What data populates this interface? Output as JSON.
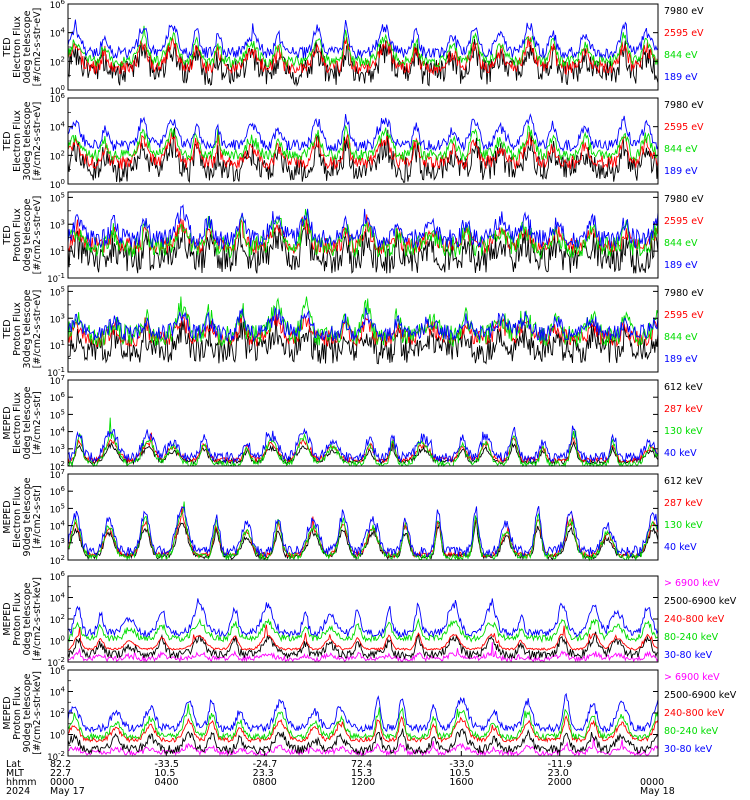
{
  "chart_data": [
    {
      "type": "line",
      "log_y": true,
      "ylabel": [
        "TED",
        "Electron Flux",
        "0deg telescope",
        "[#/cm2-s-str-eV]"
      ],
      "yticks": [
        "10^0",
        "10^2",
        "10^4",
        "10^6"
      ],
      "ylim_exp": [
        0,
        6
      ],
      "series": [
        {
          "label": "7980 eV",
          "color": "#000000",
          "base": 1.2,
          "peak": 3.0,
          "noise": 0.9,
          "seed": 11
        },
        {
          "label": "2595 eV",
          "color": "#ff0000",
          "base": 1.6,
          "peak": 3.4,
          "noise": 0.5,
          "seed": 12
        },
        {
          "label": "844 eV",
          "color": "#00dd00",
          "base": 2.0,
          "peak": 3.9,
          "noise": 0.4,
          "seed": 13
        },
        {
          "label": "189 eV",
          "color": "#0000ff",
          "base": 2.6,
          "peak": 4.6,
          "noise": 0.4,
          "seed": 14
        }
      ],
      "burst_seed": 1
    },
    {
      "type": "line",
      "log_y": true,
      "ylabel": [
        "TED",
        "Electron Flux",
        "30deg telescope",
        "[#/cm2-s-str-eV]"
      ],
      "yticks": [
        "10^0",
        "10^2",
        "10^4",
        "10^6"
      ],
      "ylim_exp": [
        0,
        6
      ],
      "series": [
        {
          "label": "7980 eV",
          "color": "#000000",
          "base": 1.0,
          "peak": 2.8,
          "noise": 0.9,
          "seed": 21
        },
        {
          "label": "2595 eV",
          "color": "#ff0000",
          "base": 1.5,
          "peak": 3.3,
          "noise": 0.5,
          "seed": 22
        },
        {
          "label": "844 eV",
          "color": "#00dd00",
          "base": 2.0,
          "peak": 3.8,
          "noise": 0.4,
          "seed": 23
        },
        {
          "label": "189 eV",
          "color": "#0000ff",
          "base": 2.7,
          "peak": 4.7,
          "noise": 0.4,
          "seed": 24
        }
      ],
      "burst_seed": 1
    },
    {
      "type": "line",
      "log_y": true,
      "ylabel": [
        "TED",
        "Proton Flux",
        "0deg telescope",
        "[#/cm2-s-str-eV]"
      ],
      "yticks": [
        "10^-1",
        "10^1",
        "10^3",
        "10^5"
      ],
      "ylim_exp": [
        -1,
        5.4
      ],
      "series": [
        {
          "label": "7980 eV",
          "color": "#000000",
          "base": 0.4,
          "peak": 2.2,
          "noise": 1.1,
          "seed": 31
        },
        {
          "label": "2595 eV",
          "color": "#ff0000",
          "base": 1.4,
          "peak": 3.0,
          "noise": 0.6,
          "seed": 32
        },
        {
          "label": "844 eV",
          "color": "#00dd00",
          "base": 1.3,
          "peak": 3.4,
          "noise": 0.8,
          "seed": 33
        },
        {
          "label": "189 eV",
          "color": "#0000ff",
          "base": 1.9,
          "peak": 3.9,
          "noise": 0.7,
          "seed": 34
        }
      ],
      "burst_seed": 2
    },
    {
      "type": "line",
      "log_y": true,
      "ylabel": [
        "TED",
        "Proton Flux",
        "30deg telescope",
        "[#/cm2-s-str-eV]"
      ],
      "yticks": [
        "10^-1",
        "10^1",
        "10^3",
        "10^5"
      ],
      "ylim_exp": [
        -1,
        5.4
      ],
      "series": [
        {
          "label": "7980 eV",
          "color": "#000000",
          "base": 0.6,
          "peak": 2.2,
          "noise": 1.0,
          "seed": 41
        },
        {
          "label": "2595 eV",
          "color": "#ff0000",
          "base": 1.5,
          "peak": 3.0,
          "noise": 0.6,
          "seed": 42
        },
        {
          "label": "844 eV",
          "color": "#00dd00",
          "base": 1.7,
          "peak": 3.9,
          "noise": 0.8,
          "seed": 43
        },
        {
          "label": "189 eV",
          "color": "#0000ff",
          "base": 1.9,
          "peak": 3.4,
          "noise": 0.6,
          "seed": 44
        }
      ],
      "burst_seed": 2
    },
    {
      "type": "line",
      "log_y": true,
      "ylabel": [
        "MEPED",
        "Electron Flux",
        "0deg telescope",
        "[#/cm2-s-str]"
      ],
      "yticks": [
        "10^2",
        "10^3",
        "10^4",
        "10^5",
        "10^6",
        "10^7"
      ],
      "ylim_exp": [
        2,
        7
      ],
      "series": [
        {
          "label": "612 keV",
          "color": "#000000",
          "base": 2.25,
          "peak": 3.3,
          "noise": 0.15,
          "seed": 51
        },
        {
          "label": "287 keV",
          "color": "#ff0000",
          "base": 2.35,
          "peak": 3.6,
          "noise": 0.15,
          "seed": 52
        },
        {
          "label": "130 keV",
          "color": "#00dd00",
          "base": 2.1,
          "peak": 3.9,
          "noise": 0.2,
          "seed": 53
        },
        {
          "label": "40 keV",
          "color": "#0000ff",
          "base": 2.5,
          "peak": 4.2,
          "noise": 0.3,
          "seed": 54
        }
      ],
      "burst_seed": 3
    },
    {
      "type": "line",
      "log_y": true,
      "ylabel": [
        "MEPED",
        "Electron Flux",
        "90deg telescope",
        "[#/cm2-s-str]"
      ],
      "yticks": [
        "10^2",
        "10^3",
        "10^4",
        "10^5",
        "10^6",
        "10^7"
      ],
      "ylim_exp": [
        2,
        7
      ],
      "series": [
        {
          "label": "612 keV",
          "color": "#000000",
          "base": 2.2,
          "peak": 4.3,
          "noise": 0.15,
          "seed": 61
        },
        {
          "label": "287 keV",
          "color": "#ff0000",
          "base": 2.3,
          "peak": 4.7,
          "noise": 0.15,
          "seed": 62
        },
        {
          "label": "130 keV",
          "color": "#00dd00",
          "base": 2.2,
          "peak": 5.0,
          "noise": 0.2,
          "seed": 63
        },
        {
          "label": "40 keV",
          "color": "#0000ff",
          "base": 2.5,
          "peak": 5.4,
          "noise": 0.3,
          "seed": 64
        }
      ],
      "burst_seed": 4
    },
    {
      "type": "line",
      "log_y": true,
      "ylabel": [
        "MEPED",
        "Proton Flux",
        "0deg telescope",
        "[#/cm2-s-str-keV]"
      ],
      "yticks": [
        "10^-2",
        "10^0",
        "10^2",
        "10^4",
        "10^6"
      ],
      "ylim_exp": [
        -2,
        6
      ],
      "series": [
        {
          "label": "> 6900 keV",
          "color": "#ff00ff",
          "base": -1.7,
          "peak": -1.2,
          "noise": 0.25,
          "seed": 71
        },
        {
          "label": "2500-6900 keV",
          "color": "#000000",
          "base": -1.3,
          "peak": 0.2,
          "noise": 0.4,
          "seed": 72
        },
        {
          "label": "240-800 keV",
          "color": "#ff0000",
          "base": -0.8,
          "peak": 0.6,
          "noise": 0.1,
          "seed": 73
        },
        {
          "label": "80-240 keV",
          "color": "#00dd00",
          "base": 0.2,
          "peak": 1.8,
          "noise": 0.3,
          "seed": 74
        },
        {
          "label": "30-80 keV",
          "color": "#0000ff",
          "base": 0.7,
          "peak": 3.4,
          "noise": 0.35,
          "seed": 75
        }
      ],
      "burst_seed": 5
    },
    {
      "type": "line",
      "log_y": true,
      "ylabel": [
        "MEPED",
        "Proton Flux",
        "90deg telescope",
        "[#/cm2-s-str-keV]"
      ],
      "yticks": [
        "10^-2",
        "10^0",
        "10^2",
        "10^4",
        "10^6"
      ],
      "ylim_exp": [
        -2,
        6
      ],
      "series": [
        {
          "label": "> 6900 keV",
          "color": "#ff00ff",
          "base": -1.7,
          "peak": -1.0,
          "noise": 0.25,
          "seed": 81
        },
        {
          "label": "2500-6900 keV",
          "color": "#000000",
          "base": -1.4,
          "peak": 0.4,
          "noise": 0.4,
          "seed": 82
        },
        {
          "label": "240-800 keV",
          "color": "#ff0000",
          "base": -0.5,
          "peak": 1.6,
          "noise": 0.2,
          "seed": 83
        },
        {
          "label": "80-240 keV",
          "color": "#00dd00",
          "base": -0.2,
          "peak": 2.4,
          "noise": 0.3,
          "seed": 84
        },
        {
          "label": "30-80 keV",
          "color": "#0000ff",
          "base": 0.6,
          "peak": 3.6,
          "noise": 0.35,
          "seed": 85
        }
      ],
      "burst_seed": 6
    }
  ],
  "x_axis": {
    "row_labels": [
      "Lat",
      "MLT",
      "hhmm",
      "2024"
    ],
    "ticks": [
      {
        "lat": "82.2",
        "mlt": "22.7",
        "hhmm": "0000",
        "date": "May 17"
      },
      {
        "lat": "-33.5",
        "mlt": "10.5",
        "hhmm": "0400",
        "date": ""
      },
      {
        "lat": "-24.7",
        "mlt": "23.3",
        "hhmm": "0800",
        "date": ""
      },
      {
        "lat": "72.4",
        "mlt": "15.3",
        "hhmm": "1200",
        "date": ""
      },
      {
        "lat": "-33.0",
        "mlt": "10.5",
        "hhmm": "1600",
        "date": ""
      },
      {
        "lat": "-11.9",
        "mlt": "23.0",
        "hhmm": "2000",
        "date": ""
      },
      {
        "lat": "",
        "mlt": "",
        "hhmm": "0000",
        "date": "May 18"
      }
    ]
  }
}
